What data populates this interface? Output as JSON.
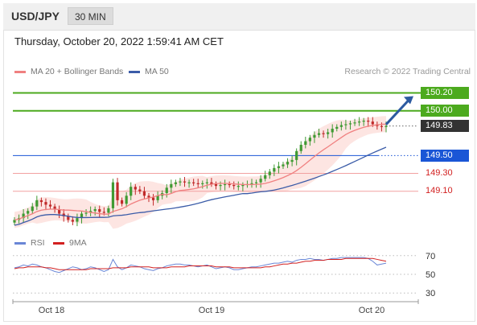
{
  "header": {
    "pair": "USD/JPY",
    "timeframe": "30 MIN"
  },
  "datetime": "Thursday, October 20, 2022 1:59:41 AM CET",
  "legend": {
    "ma20_label": "MA 20 + Bollinger Bands",
    "ma50_label": "MA 50",
    "credit": "Research © 2022 Trading Central",
    "rsi_label": "RSI",
    "nine_ma_label": "9MA"
  },
  "colors": {
    "up": "#3f9a33",
    "down": "#c02a2a",
    "ma20": "#f08080",
    "ma50": "#3b5ca8",
    "band": "#fcd3cf",
    "resistance": "#4caa1e",
    "pivot": "#1a56d6",
    "support": "#e05a5a",
    "current": "#333333",
    "rsi": "#6a86d6",
    "rsi_ma": "#d22020"
  },
  "levels": [
    {
      "label": "150.20",
      "value": 150.2,
      "kind": "resistance"
    },
    {
      "label": "150.00",
      "value": 150.0,
      "kind": "resistance"
    },
    {
      "label": "149.83",
      "value": 149.83,
      "kind": "current"
    },
    {
      "label": "149.50",
      "value": 149.5,
      "kind": "pivot"
    },
    {
      "label": "149.30",
      "value": 149.3,
      "kind": "support"
    },
    {
      "label": "149.10",
      "value": 149.1,
      "kind": "support"
    }
  ],
  "rsi_ticks": [
    "70",
    "50",
    "30"
  ],
  "x_ticks": [
    "Oct 18",
    "Oct 19",
    "Oct 20"
  ],
  "chart_data": {
    "type": "candlestick",
    "price_range": [
      148.72,
      150.34
    ],
    "closes": [
      148.78,
      148.8,
      148.85,
      148.88,
      148.93,
      149.0,
      148.98,
      148.95,
      148.93,
      148.9,
      148.85,
      148.82,
      148.78,
      148.76,
      148.8,
      148.85,
      148.86,
      148.88,
      148.9,
      148.87,
      148.86,
      148.91,
      149.2,
      149.0,
      148.96,
      149.05,
      149.15,
      149.12,
      149.1,
      149.05,
      149.03,
      149.0,
      149.05,
      149.08,
      149.14,
      149.18,
      149.2,
      149.21,
      149.2,
      149.2,
      149.19,
      149.18,
      149.19,
      149.2,
      149.18,
      149.16,
      149.17,
      149.18,
      149.17,
      149.16,
      149.16,
      149.17,
      149.18,
      149.19,
      149.2,
      149.24,
      149.28,
      149.32,
      149.36,
      149.38,
      149.4,
      149.43,
      149.45,
      149.55,
      149.62,
      149.66,
      149.7,
      149.73,
      149.75,
      149.74,
      149.76,
      149.8,
      149.82,
      149.84,
      149.85,
      149.86,
      149.87,
      149.88,
      149.89,
      149.88,
      149.85,
      149.83,
      149.82,
      149.83
    ],
    "rsi": [
      57,
      58,
      60,
      59,
      61,
      60,
      58,
      57,
      55,
      53,
      52,
      54,
      56,
      58,
      57,
      55,
      56,
      58,
      57,
      55,
      53,
      55,
      66,
      58,
      55,
      57,
      60,
      59,
      58,
      56,
      55,
      54,
      56,
      57,
      59,
      60,
      61,
      61,
      60,
      60,
      59,
      58,
      59,
      60,
      58,
      56,
      57,
      58,
      57,
      55,
      55,
      56,
      57,
      58,
      58,
      59,
      60,
      61,
      62,
      62,
      63,
      64,
      63,
      65,
      66,
      66,
      67,
      66,
      66,
      65,
      66,
      67,
      67,
      68,
      68,
      68,
      68,
      68,
      68,
      67,
      64,
      60,
      61,
      62
    ],
    "rsi_ma": [
      56,
      57,
      57,
      58,
      58,
      58,
      58,
      57,
      57,
      56,
      55,
      55,
      55,
      55,
      55,
      55,
      55,
      56,
      56,
      56,
      56,
      56,
      57,
      57,
      57,
      57,
      58,
      58,
      58,
      58,
      58,
      57,
      57,
      57,
      57,
      58,
      58,
      58,
      58,
      59,
      59,
      59,
      59,
      59,
      59,
      58,
      58,
      58,
      58,
      57,
      57,
      57,
      57,
      57,
      57,
      57,
      58,
      58,
      59,
      60,
      61,
      61,
      62,
      62,
      63,
      64,
      64,
      65,
      65,
      65,
      66,
      66,
      66,
      66,
      67,
      67,
      67,
      67,
      67,
      67,
      67,
      66,
      65,
      64
    ],
    "rsi_levels": [
      70,
      50,
      30
    ],
    "x_labels": [
      "Oct 18",
      "Oct 19",
      "Oct 20"
    ],
    "forecast_target": 150.2
  }
}
